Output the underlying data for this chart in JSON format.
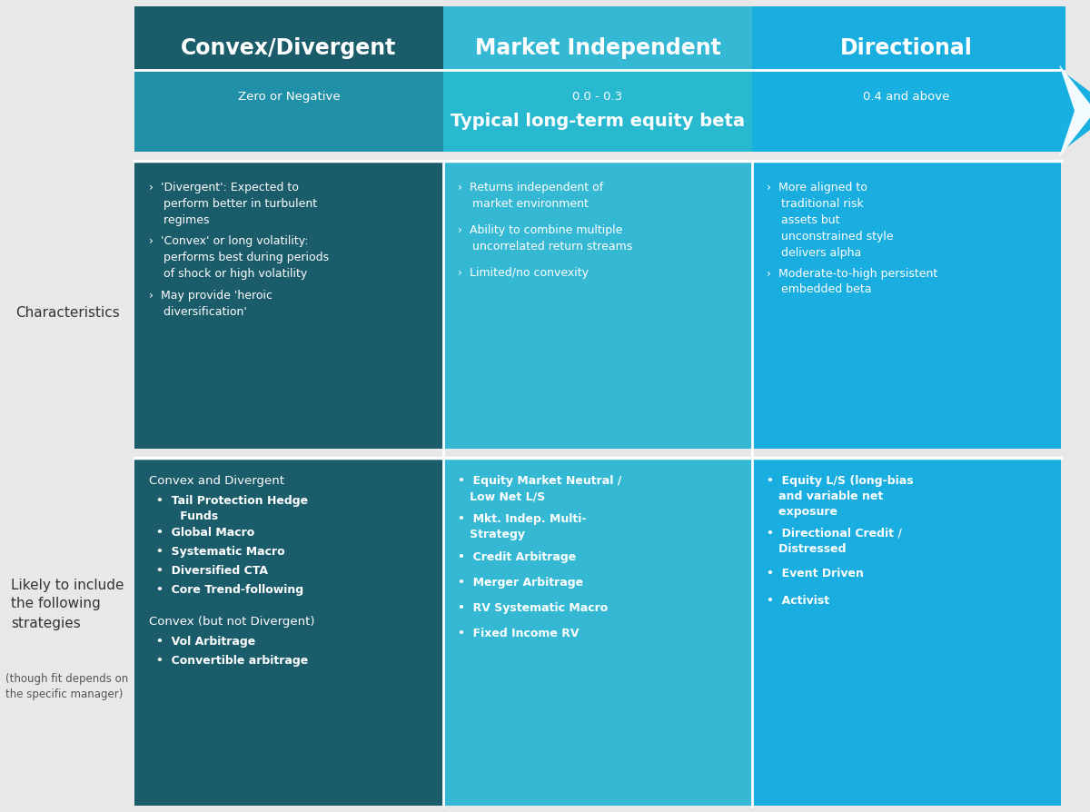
{
  "colors": {
    "col1_dark": "#1B5C6B",
    "col2_medium": "#35B8D4",
    "col3_bright": "#1AAEE0",
    "arrow_col1": "#2090A8",
    "arrow_col2": "#28B8D0",
    "arrow_col3": "#18B0E0",
    "white": "#FFFFFF",
    "bg": "#E8E8E8",
    "label_dark": "#333333",
    "label_small": "#555555"
  },
  "headers": [
    "Convex/Divergent",
    "Market Independent",
    "Directional"
  ],
  "beta_labels": [
    "Zero or Negative",
    "0.0 - 0.3",
    "0.4 and above"
  ],
  "arrow_label": "Typical long-term equity beta",
  "char_col1": [
    "›  'Divergent': Expected to\n    perform better in turbulent\n    regimes",
    "›  'Convex' or long volatility:\n    performs best during periods\n    of shock or high volatility",
    "›  May provide 'heroic\n    diversification'"
  ],
  "char_col2": [
    "›  Returns independent of\n    market environment",
    "›  Ability to combine multiple\n    uncorrelated return streams",
    "›  Limited/no convexity"
  ],
  "char_col3": [
    "›  More aligned to\n    traditional risk\n    assets but\n    unconstrained style\n    delivers alpha",
    "›  Moderate-to-high persistent\n    embedded beta"
  ],
  "strat_col1_header1": "Convex and Divergent",
  "strat_col1_bullets1": [
    "Tail Protection Hedge\n      Funds",
    "Global Macro",
    "Systematic Macro",
    "Diversified CTA",
    "Core Trend-following"
  ],
  "strat_col1_header2": "Convex (but not Divergent)",
  "strat_col1_bullets2": [
    "Vol Arbitrage",
    "Convertible arbitrage"
  ],
  "strat_col2_bullets": [
    "Equity Market Neutral /\n   Low Net L/S",
    "Mkt. Indep. Multi-\n   Strategy",
    "Credit Arbitrage",
    "Merger Arbitrage",
    "RV Systematic Macro",
    "Fixed Income RV"
  ],
  "strat_col3_bullets": [
    "Equity L/S (long-bias\n   and variable net\n   exposure",
    "Directional Credit /\n   Distressed",
    "Event Driven",
    "Activist"
  ],
  "row_label1": "Characteristics",
  "row_label2a": "Likely to include\nthe following\nstrategies",
  "row_label2b": "(though fit depends on\nthe specific manager)"
}
